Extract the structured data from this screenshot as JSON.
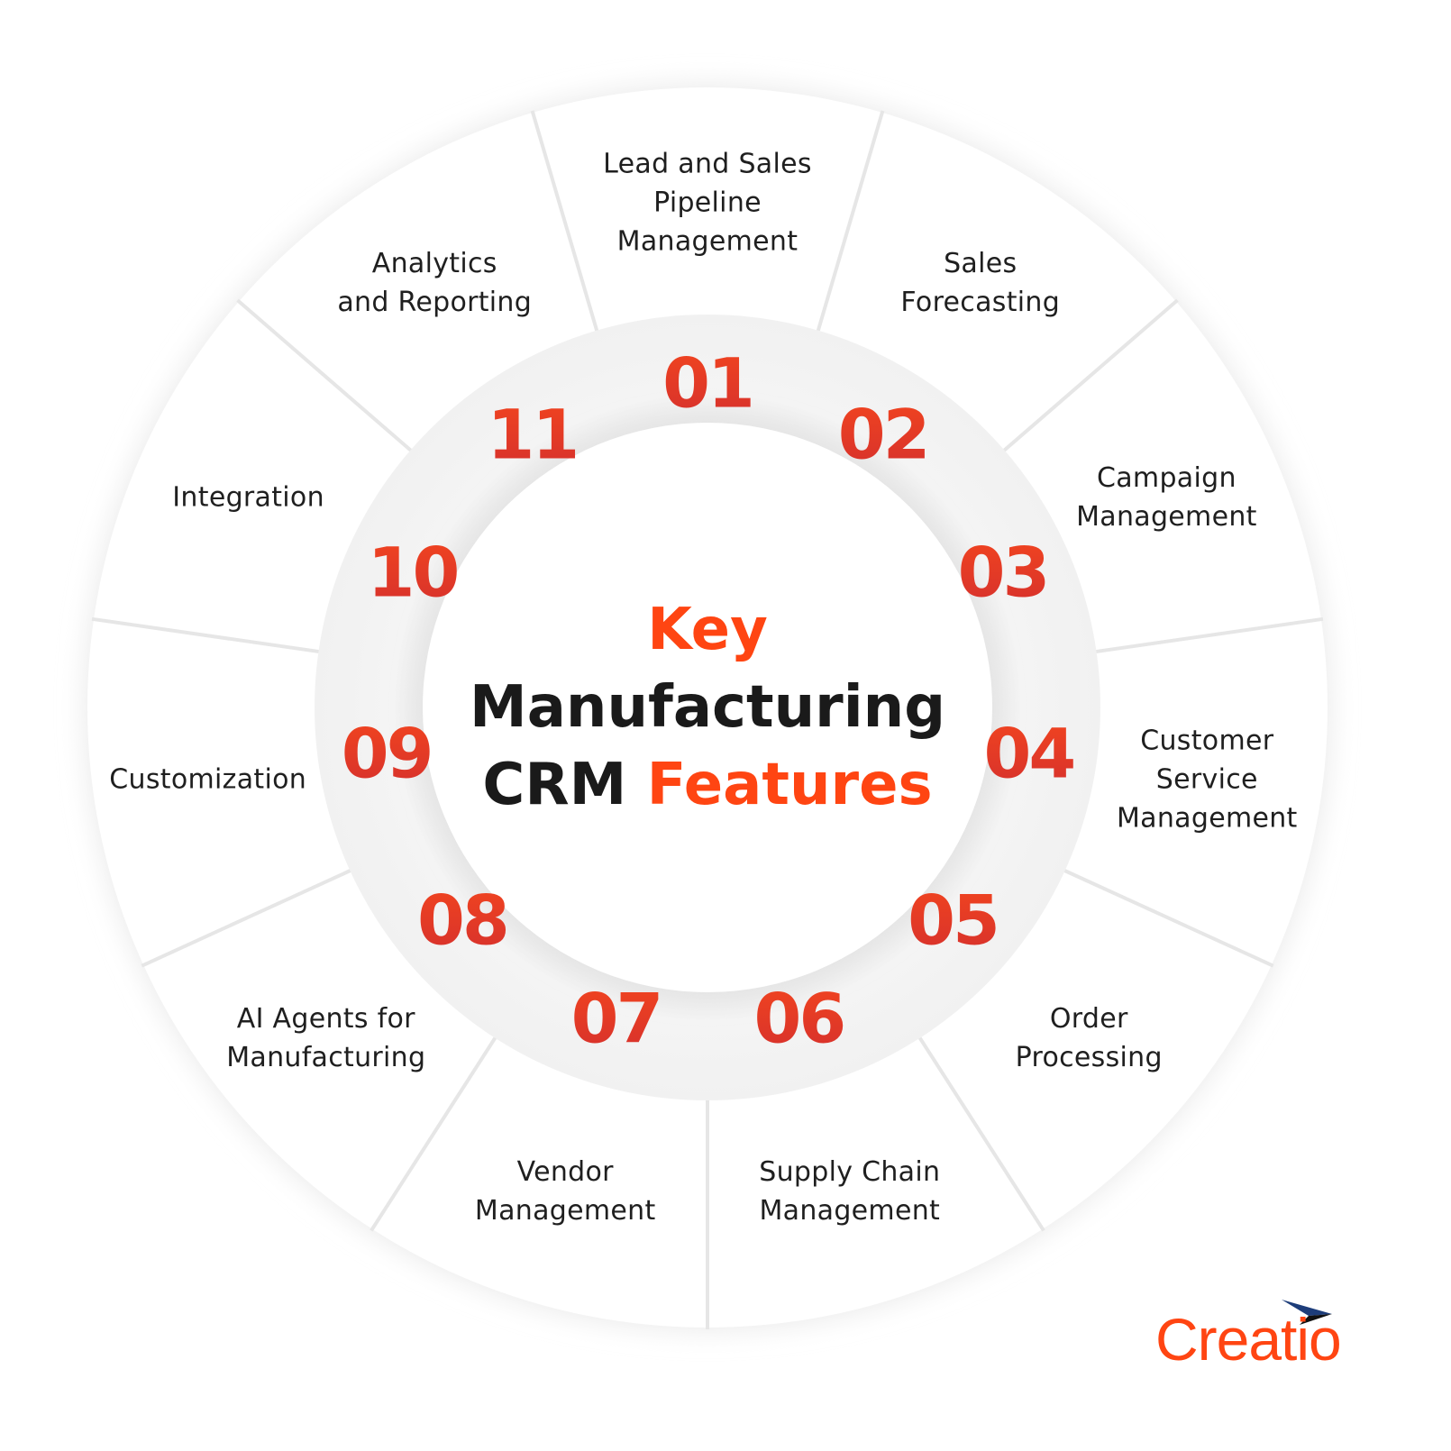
{
  "title": {
    "line1_accent": "Key",
    "line2": "Manufacturing",
    "line3_dark": "CRM",
    "line3_accent": "Features"
  },
  "features": [
    {
      "number": "01",
      "label": "Lead and Sales\nPipeline\nManagement"
    },
    {
      "number": "02",
      "label": "Sales\nForecasting"
    },
    {
      "number": "03",
      "label": "Campaign\nManagement"
    },
    {
      "number": "04",
      "label": "Customer\nService\nManagement"
    },
    {
      "number": "05",
      "label": "Order\nProcessing"
    },
    {
      "number": "06",
      "label": "Supply Chain\nManagement"
    },
    {
      "number": "07",
      "label": "Vendor\nManagement"
    },
    {
      "number": "08",
      "label": "AI Agents for\nManufacturing"
    },
    {
      "number": "09",
      "label": "Customization"
    },
    {
      "number": "10",
      "label": "Integration"
    },
    {
      "number": "11",
      "label": "Analytics\nand Reporting"
    }
  ],
  "logo": {
    "text": "Creatio"
  },
  "colors": {
    "accent": "#ff4512",
    "number_top": "#f2451f",
    "number_bottom": "#d5302d",
    "text": "#1a1a1a",
    "divider": "#e6e6e6"
  }
}
